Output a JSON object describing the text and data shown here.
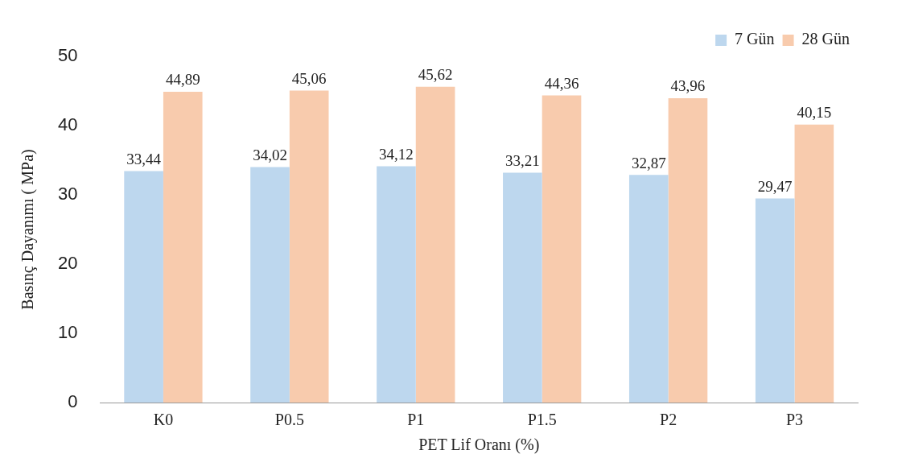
{
  "chart_data": {
    "type": "bar",
    "xlabel": "PET Lif Oranı (%)",
    "ylabel": "Basınç Dayanımı ( MPa)",
    "categories": [
      "K0",
      "P0.5",
      "P1",
      "P1.5",
      "P2",
      "P3"
    ],
    "series": [
      {
        "name": "7 Gün",
        "color": "#bdd7ee",
        "values": [
          33.44,
          34.02,
          34.12,
          33.21,
          32.87,
          29.47
        ],
        "value_labels": [
          "33,44",
          "34,02",
          "34,12",
          "33,21",
          "32,87",
          "29,47"
        ]
      },
      {
        "name": "28 Gün",
        "color": "#f8cbad",
        "values": [
          44.89,
          45.06,
          45.62,
          44.36,
          43.96,
          40.15
        ],
        "value_labels": [
          "44,89",
          "45,06",
          "45,62",
          "44,36",
          "43,96",
          "40,15"
        ]
      }
    ],
    "ylim": [
      0,
      50
    ],
    "yticks": [
      0,
      10,
      20,
      30,
      40,
      50
    ],
    "grid": false,
    "legend": "top right"
  }
}
